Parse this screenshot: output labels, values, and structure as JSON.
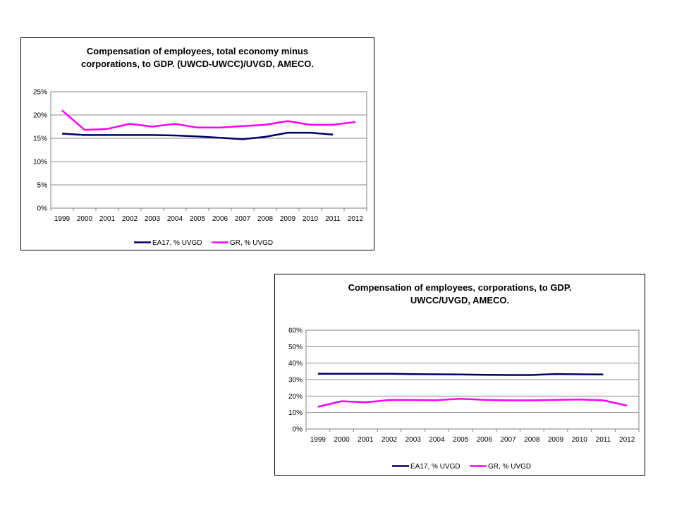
{
  "chart_data": [
    {
      "type": "line",
      "title": "Compensation of employees, total economy minus\ncorporations, to GDP. (UWCD-UWCC)/UVGD, AMECO.",
      "categories": [
        "1999",
        "2000",
        "2001",
        "2002",
        "2003",
        "2004",
        "2005",
        "2006",
        "2007",
        "2008",
        "2009",
        "2010",
        "2011",
        "2012"
      ],
      "ylim": [
        0,
        25
      ],
      "yticks": [
        0,
        5,
        10,
        15,
        20,
        25
      ],
      "ytick_labels": [
        "0%",
        "5%",
        "10%",
        "15%",
        "20%",
        "25%"
      ],
      "grid": true,
      "legend_position": "bottom",
      "series": [
        {
          "name": "EA17, % UVGD",
          "color": "#000066",
          "values": [
            16.0,
            15.7,
            15.7,
            15.7,
            15.7,
            15.6,
            15.4,
            15.1,
            14.8,
            15.3,
            16.2,
            16.2,
            15.8,
            null
          ]
        },
        {
          "name": "GR, % UVGD",
          "color": "#ff00ff",
          "values": [
            21.0,
            16.8,
            17.0,
            18.1,
            17.5,
            18.1,
            17.3,
            17.3,
            17.6,
            17.9,
            18.7,
            17.9,
            17.9,
            18.5
          ]
        }
      ]
    },
    {
      "type": "line",
      "title": "Compensation of employees, corporations, to GDP.\nUWCC/UVGD, AMECO.",
      "categories": [
        "1999",
        "2000",
        "2001",
        "2002",
        "2003",
        "2004",
        "2005",
        "2006",
        "2007",
        "2008",
        "2009",
        "2010",
        "2011",
        "2012"
      ],
      "ylim": [
        0,
        60
      ],
      "yticks": [
        0,
        10,
        20,
        30,
        40,
        50,
        60
      ],
      "ytick_labels": [
        "0%",
        "10%",
        "20%",
        "30%",
        "40%",
        "50%",
        "60%"
      ],
      "grid": true,
      "legend_position": "bottom",
      "series": [
        {
          "name": "EA17, % UVGD",
          "color": "#000066",
          "values": [
            33.5,
            33.5,
            33.5,
            33.5,
            33.3,
            33.2,
            33.1,
            32.9,
            32.8,
            32.8,
            33.4,
            33.2,
            33.1,
            null
          ]
        },
        {
          "name": "GR, % UVGD",
          "color": "#ff00ff",
          "values": [
            13.5,
            16.9,
            16.2,
            17.6,
            17.6,
            17.5,
            18.4,
            17.7,
            17.4,
            17.4,
            17.7,
            17.9,
            17.4,
            14.2
          ]
        }
      ]
    }
  ]
}
